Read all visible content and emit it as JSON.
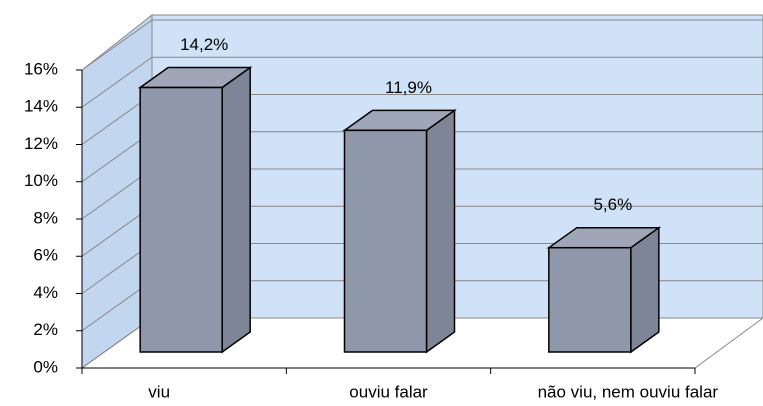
{
  "chart_data": {
    "type": "bar",
    "categories": [
      "viu",
      "ouviu falar",
      "não viu, nem ouviu falar"
    ],
    "values": [
      14.2,
      11.9,
      5.6
    ],
    "value_labels": [
      "14,2%",
      "11,9%",
      "5,6%"
    ],
    "color": "#8f97aa",
    "ylim": [
      0,
      16
    ],
    "yticks": [
      {
        "value": 0,
        "label": "0%"
      },
      {
        "value": 2,
        "label": "2%"
      },
      {
        "value": 4,
        "label": "4%"
      },
      {
        "value": 6,
        "label": "6%"
      },
      {
        "value": 8,
        "label": "8%"
      },
      {
        "value": 10,
        "label": "10%"
      },
      {
        "value": 12,
        "label": "12%"
      },
      {
        "value": 14,
        "label": "14%"
      },
      {
        "value": 16,
        "label": "16%"
      }
    ],
    "grid": true
  }
}
